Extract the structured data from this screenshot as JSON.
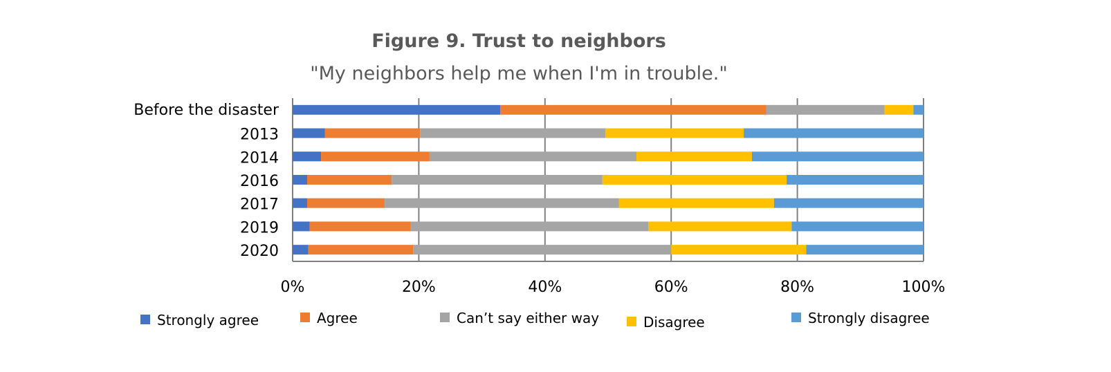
{
  "chart_data": {
    "type": "bar",
    "orientation": "horizontal",
    "stacked": "100%",
    "title": "Figure 9. Trust to neighbors",
    "subtitle": "\"My neighbors help me when I'm in trouble.\"",
    "categories": [
      "Before the disaster",
      "2013",
      "2014",
      "2016",
      "2017",
      "2019",
      "2020"
    ],
    "series": [
      {
        "name": "Strongly agree",
        "color": "#4472C4",
        "values": [
          32.9,
          5.1,
          4.5,
          2.3,
          2.3,
          2.7,
          2.5
        ]
      },
      {
        "name": "Agree",
        "color": "#ED7D31",
        "values": [
          42.2,
          15.1,
          17.2,
          13.4,
          12.3,
          16.0,
          16.6
        ]
      },
      {
        "name": "Can’t say either way",
        "color": "#A5A5A5",
        "values": [
          18.7,
          29.4,
          32.8,
          33.4,
          37.1,
          37.7,
          40.9
        ]
      },
      {
        "name": "Disagree",
        "color": "#FFC000",
        "values": [
          4.6,
          21.9,
          18.3,
          29.2,
          24.6,
          22.7,
          21.4
        ]
      },
      {
        "name": "Strongly disagree",
        "color": "#5B9BD5",
        "values": [
          1.6,
          28.5,
          27.2,
          21.7,
          23.7,
          20.9,
          18.6
        ]
      }
    ],
    "xlim": [
      0,
      100
    ],
    "xticks": [
      "0%",
      "20%",
      "40%",
      "60%",
      "80%",
      "100%"
    ],
    "grid": true,
    "legend": "bottom"
  }
}
